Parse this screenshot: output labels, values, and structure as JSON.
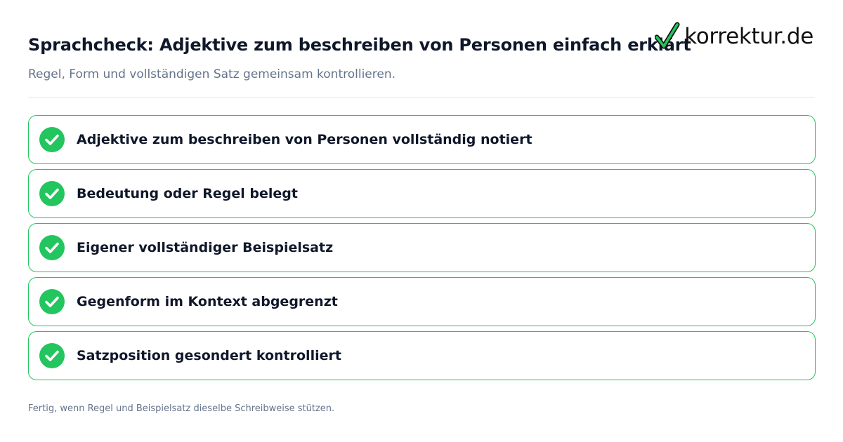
{
  "header": {
    "title": "Sprachcheck: Adjektive zum beschreiben von Personen einfach erklärt",
    "subtitle": "Regel, Form und vollständigen Satz gemeinsam kontrollieren."
  },
  "logo": {
    "text": "korrektur.de",
    "icon": "checkmark-icon",
    "check_color": "#22c55e"
  },
  "checklist": {
    "items": [
      {
        "label": "Adjektive zum beschreiben von Personen vollständig notiert",
        "icon": "check-circle-icon",
        "checked": true
      },
      {
        "label": "Bedeutung oder Regel belegt",
        "icon": "check-circle-icon",
        "checked": true
      },
      {
        "label": "Eigener vollständiger Beispielsatz",
        "icon": "check-circle-icon",
        "checked": true
      },
      {
        "label": "Gegenform im Kontext abgegrenzt",
        "icon": "check-circle-icon",
        "checked": true
      },
      {
        "label": "Satzposition gesondert kontrolliert",
        "icon": "check-circle-icon",
        "checked": true
      }
    ]
  },
  "footer": {
    "note": "Fertig, wenn Regel und Beispielsatz dieselbe Schreibweise stützen."
  },
  "colors": {
    "accent": "#22c55e",
    "title": "#0f172a",
    "muted": "#64748b",
    "divider": "#e5e7eb"
  }
}
